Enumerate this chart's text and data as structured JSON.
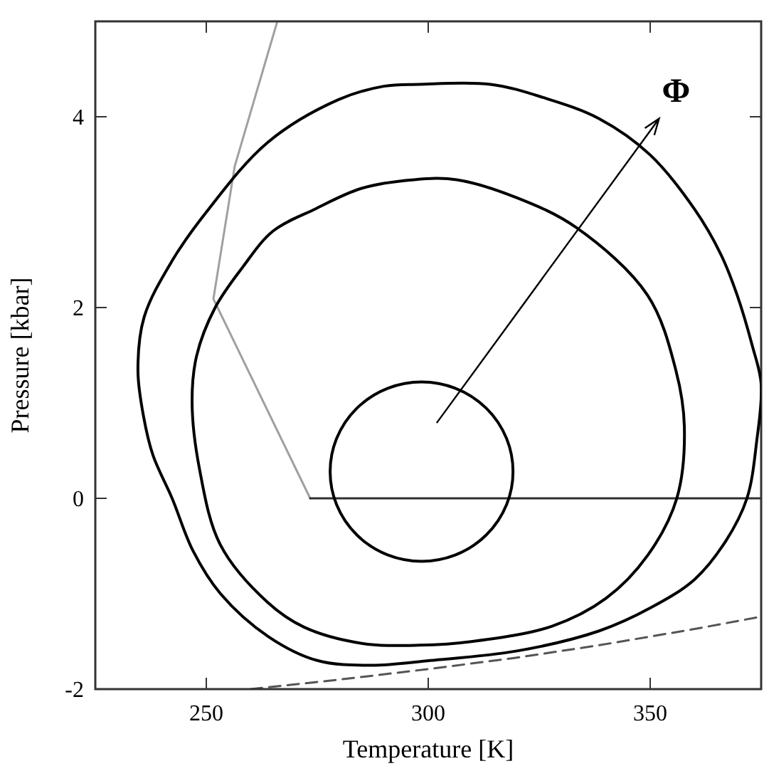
{
  "chart_data": {
    "type": "line",
    "xlabel": "Temperature [K]",
    "ylabel": "Pressure [kbar]",
    "xlim": [
      225,
      375
    ],
    "ylim": [
      -2,
      5
    ],
    "xticks": [
      250,
      300,
      350
    ],
    "yticks": [
      -2,
      0,
      2,
      4
    ],
    "grid": false,
    "marker": "none",
    "series": [
      {
        "color": "#a0a0a0",
        "x": [
          266,
          256.4,
          251.6,
          273.4
        ],
        "values": [
          5.0,
          3.48,
          2.09,
          0
        ]
      },
      {
        "color": "#303030",
        "x": [
          273.4,
          375
        ],
        "values": [
          0,
          0
        ]
      },
      {
        "color": "#555555",
        "line_style": "dashed",
        "x": [
          260,
          280,
          300,
          320,
          338.5,
          360,
          375
        ],
        "values": [
          -2,
          -1.9,
          -1.79,
          -1.67,
          -1.54,
          -1.37,
          -1.24
        ]
      }
    ],
    "annotations": [
      "Φ"
    ]
  }
}
